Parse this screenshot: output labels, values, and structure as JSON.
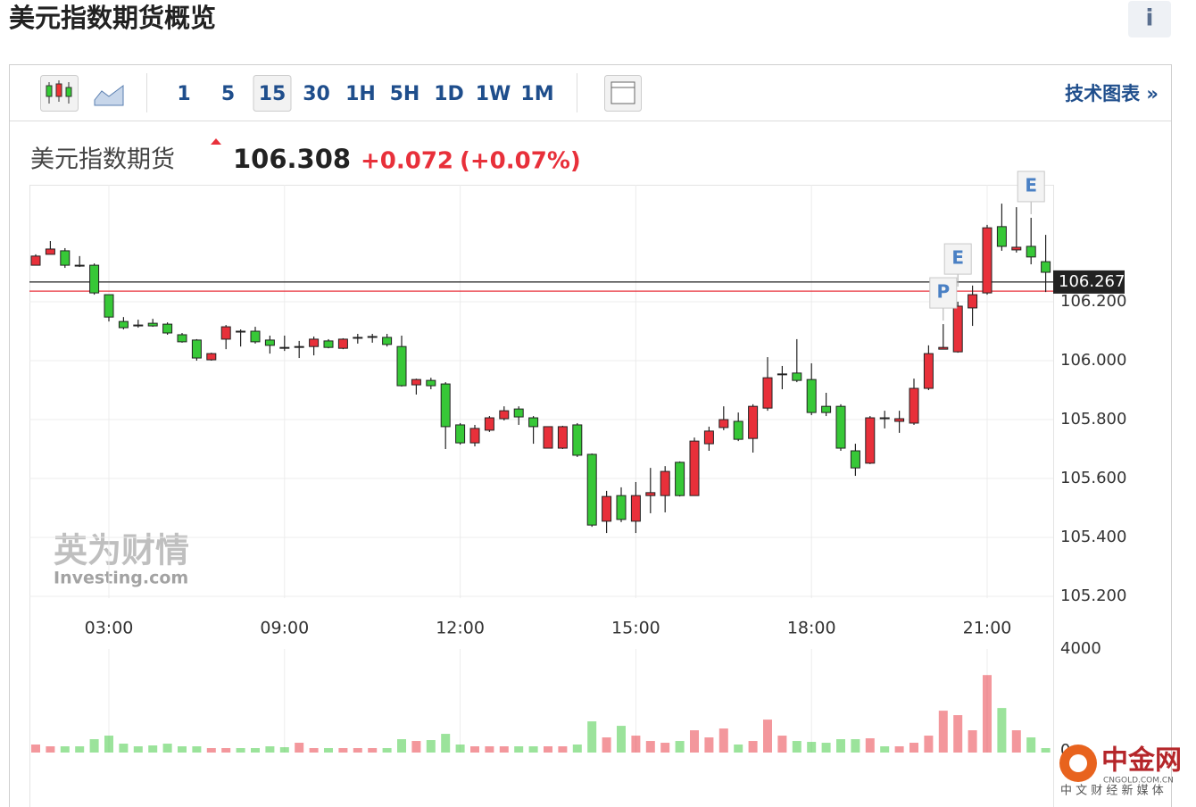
{
  "page": {
    "title": "美元指数期货概览",
    "info": "i"
  },
  "toolbar": {
    "intervals": [
      "1",
      "5",
      "15",
      "30",
      "1H",
      "5H",
      "1D",
      "1W",
      "1M"
    ],
    "active_index": 2,
    "link": "技术图表 »"
  },
  "quote": {
    "name": "美元指数期货",
    "last": "106.308",
    "change": "+0.072",
    "change_pct": "(+0.07%)"
  },
  "watermark": {
    "cn": "英为财情",
    "en": "Investing.com"
  },
  "logo": {
    "name": "中金网",
    "domain": "CNGOLD.COM.CN",
    "tagline": "中 文 财 经 新 媒 体"
  },
  "chart_data": {
    "type": "candlestick",
    "categories": [
      null,
      null,
      null,
      null,
      null,
      "03:00",
      null,
      null,
      null,
      null,
      null,
      null,
      null,
      null,
      null,
      null,
      null,
      "09:00",
      null,
      null,
      null,
      null,
      null,
      null,
      null,
      null,
      null,
      null,
      null,
      "12:00",
      null,
      null,
      null,
      null,
      null,
      null,
      null,
      null,
      null,
      null,
      null,
      "15:00",
      null,
      null,
      null,
      null,
      null,
      null,
      null,
      null,
      null,
      null,
      null,
      "18:00",
      null,
      null,
      null,
      null,
      null,
      null,
      null,
      null,
      null,
      null,
      null,
      "21:00",
      null,
      null,
      null,
      null
    ],
    "open": [
      106.324,
      106.361,
      106.373,
      106.324,
      106.324,
      106.224,
      106.133,
      106.121,
      106.127,
      106.124,
      106.088,
      106.07,
      106.003,
      106.073,
      106.1,
      106.1,
      106.07,
      106.045,
      106.045,
      106.048,
      106.067,
      106.042,
      106.076,
      106.079,
      106.079,
      106.048,
      105.918,
      105.933,
      105.921,
      105.782,
      105.721,
      105.764,
      105.803,
      105.836,
      105.806,
      105.703,
      105.703,
      105.782,
      105.682,
      105.455,
      105.542,
      105.455,
      105.542,
      105.542,
      105.655,
      105.542,
      105.718,
      105.773,
      105.794,
      105.736,
      105.839,
      105.952,
      105.958,
      105.936,
      105.845,
      105.845,
      105.694,
      105.652,
      105.806,
      105.794,
      105.788,
      105.906,
      106.039,
      106.03,
      106.179,
      106.23,
      106.455,
      106.376,
      106.388,
      106.336
    ],
    "high": [
      106.361,
      106.406,
      106.382,
      106.355,
      106.33,
      106.224,
      106.148,
      106.139,
      106.142,
      106.13,
      106.094,
      106.073,
      106.027,
      106.121,
      106.106,
      106.115,
      106.085,
      106.085,
      106.067,
      106.082,
      106.073,
      106.076,
      106.091,
      106.091,
      106.091,
      106.085,
      105.939,
      105.942,
      105.927,
      105.788,
      105.782,
      105.812,
      105.845,
      105.845,
      105.812,
      105.776,
      105.779,
      105.788,
      105.685,
      105.558,
      105.57,
      105.588,
      105.636,
      105.642,
      105.658,
      105.739,
      105.776,
      105.845,
      105.824,
      105.852,
      106.012,
      105.982,
      106.073,
      105.991,
      105.891,
      105.852,
      105.718,
      105.812,
      105.83,
      105.83,
      105.939,
      106.052,
      106.124,
      106.2,
      106.255,
      106.461,
      106.533,
      106.521,
      106.485,
      106.427
    ],
    "low": [
      106.324,
      106.361,
      106.315,
      106.318,
      106.224,
      106.133,
      106.106,
      106.112,
      106.115,
      106.088,
      106.061,
      106.0,
      106.0,
      106.039,
      106.048,
      106.058,
      106.024,
      106.033,
      106.009,
      106.018,
      106.042,
      106.039,
      106.058,
      106.061,
      106.048,
      105.912,
      105.885,
      105.903,
      105.7,
      105.715,
      105.709,
      105.758,
      105.797,
      105.782,
      105.718,
      105.703,
      105.7,
      105.673,
      105.436,
      105.415,
      105.452,
      105.415,
      105.482,
      105.485,
      105.539,
      105.542,
      105.694,
      105.764,
      105.727,
      105.688,
      105.83,
      105.903,
      105.927,
      105.815,
      105.812,
      105.694,
      105.609,
      105.649,
      105.77,
      105.755,
      105.782,
      105.9,
      106.039,
      106.027,
      106.118,
      106.224,
      106.373,
      106.367,
      106.327,
      106.233
    ],
    "close": [
      106.355,
      106.379,
      106.324,
      106.321,
      106.23,
      106.148,
      106.112,
      106.118,
      106.118,
      106.094,
      106.064,
      106.009,
      106.024,
      106.115,
      106.097,
      106.064,
      106.052,
      106.042,
      106.048,
      106.073,
      106.045,
      106.073,
      106.079,
      106.082,
      106.055,
      105.915,
      105.936,
      105.915,
      105.776,
      105.721,
      105.77,
      105.806,
      105.83,
      105.809,
      105.776,
      105.776,
      105.776,
      105.679,
      105.442,
      105.539,
      105.461,
      105.542,
      105.552,
      105.624,
      105.542,
      105.727,
      105.761,
      105.8,
      105.733,
      105.845,
      105.942,
      105.955,
      105.933,
      105.824,
      105.824,
      105.703,
      105.636,
      105.806,
      105.803,
      105.803,
      105.906,
      106.024,
      106.045,
      106.185,
      106.224,
      106.451,
      106.388,
      106.385,
      106.352,
      106.3
    ],
    "up_color": "#e8303a",
    "down_color": "#37c837",
    "ylim": [
      105.194,
      106.597
    ],
    "yticks": [
      {
        "value": 105.2,
        "label": "105.200"
      },
      {
        "value": 105.4,
        "label": "105.400"
      },
      {
        "value": 105.6,
        "label": "105.600"
      },
      {
        "value": 105.8,
        "label": "105.800"
      },
      {
        "value": 106.0,
        "label": "106.000"
      },
      {
        "value": 106.2,
        "label": "106.200"
      }
    ],
    "grid": true,
    "reference_lines": [
      {
        "value": 106.267,
        "label": "106.267",
        "color": "#222222"
      },
      {
        "value": 106.236,
        "color": "#e8303a"
      }
    ],
    "events": [
      {
        "label": "P",
        "index": 62
      },
      {
        "label": "E",
        "index": 63
      },
      {
        "label": "E",
        "index": 68
      }
    ],
    "volume": {
      "values": [
        245,
        175,
        175,
        175,
        455,
        595,
        280,
        175,
        210,
        280,
        175,
        175,
        105,
        105,
        105,
        105,
        175,
        140,
        315,
        105,
        105,
        105,
        105,
        105,
        105,
        455,
        385,
        420,
        665,
        245,
        175,
        175,
        175,
        175,
        175,
        175,
        175,
        245,
        1155,
        525,
        980,
        595,
        385,
        315,
        385,
        805,
        525,
        875,
        245,
        385,
        1225,
        595,
        385,
        350,
        315,
        455,
        455,
        490,
        175,
        175,
        315,
        595,
        1575,
        1400,
        805,
        2975,
        1680,
        805,
        525,
        105
      ],
      "ylim": [
        0,
        4000
      ],
      "yticks": [
        0,
        4000
      ]
    }
  }
}
